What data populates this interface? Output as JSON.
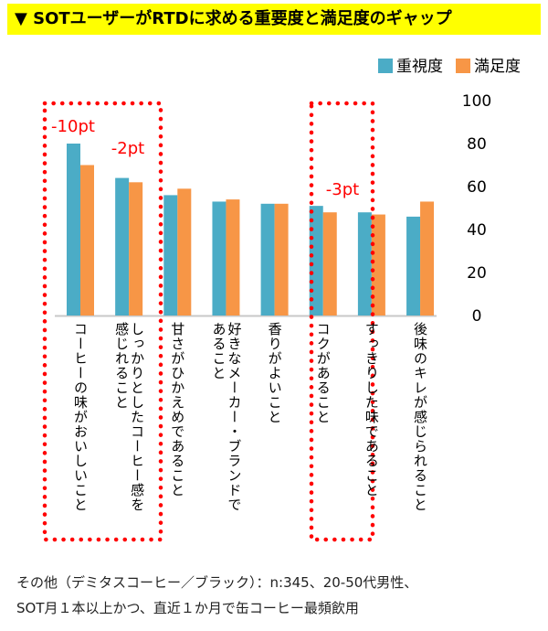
{
  "title": "▼ SOTユーザーがRTDに求める重要度と満足度のギャップ",
  "chart_data": {
    "type": "bar",
    "categories": [
      "コーヒーの味がおいしいこと",
      "しっかりとしたコーヒー感を感じれること",
      "甘さがひかえめであること",
      "好きなメーカー・ブランドであること",
      "香りがよいこと",
      "コクがあること",
      "すっきりした味であること",
      "後味のキレが感じられること"
    ],
    "series": [
      {
        "name": "重視度",
        "color": "#4bacc6",
        "values": [
          80,
          64,
          56,
          53,
          52,
          51,
          48,
          46
        ]
      },
      {
        "name": "満足度",
        "color": "#f79646",
        "values": [
          70,
          62,
          59,
          54,
          52,
          48,
          47,
          53
        ]
      }
    ],
    "ylim": [
      0,
      100
    ],
    "yticks": [
      "0",
      "20",
      "40",
      "60",
      "80",
      "100"
    ],
    "y_axis_side": "right",
    "legend": "top-right",
    "grid": false,
    "annotations": [
      {
        "text": "-10pt",
        "category": 0
      },
      {
        "text": "-2pt",
        "category": 1
      },
      {
        "text": "-3pt",
        "category": 5
      }
    ],
    "highlight_boxes": [
      [
        0,
        1
      ],
      [
        5,
        5
      ]
    ],
    "highlight_color": "#ff0000"
  },
  "notes": [
    "その他（デミタスコーヒー／ブラック）：n:345、20-50代男性、",
    "SOT月１本以上かつ、直近１か月で缶コーヒー最頻飲用"
  ]
}
